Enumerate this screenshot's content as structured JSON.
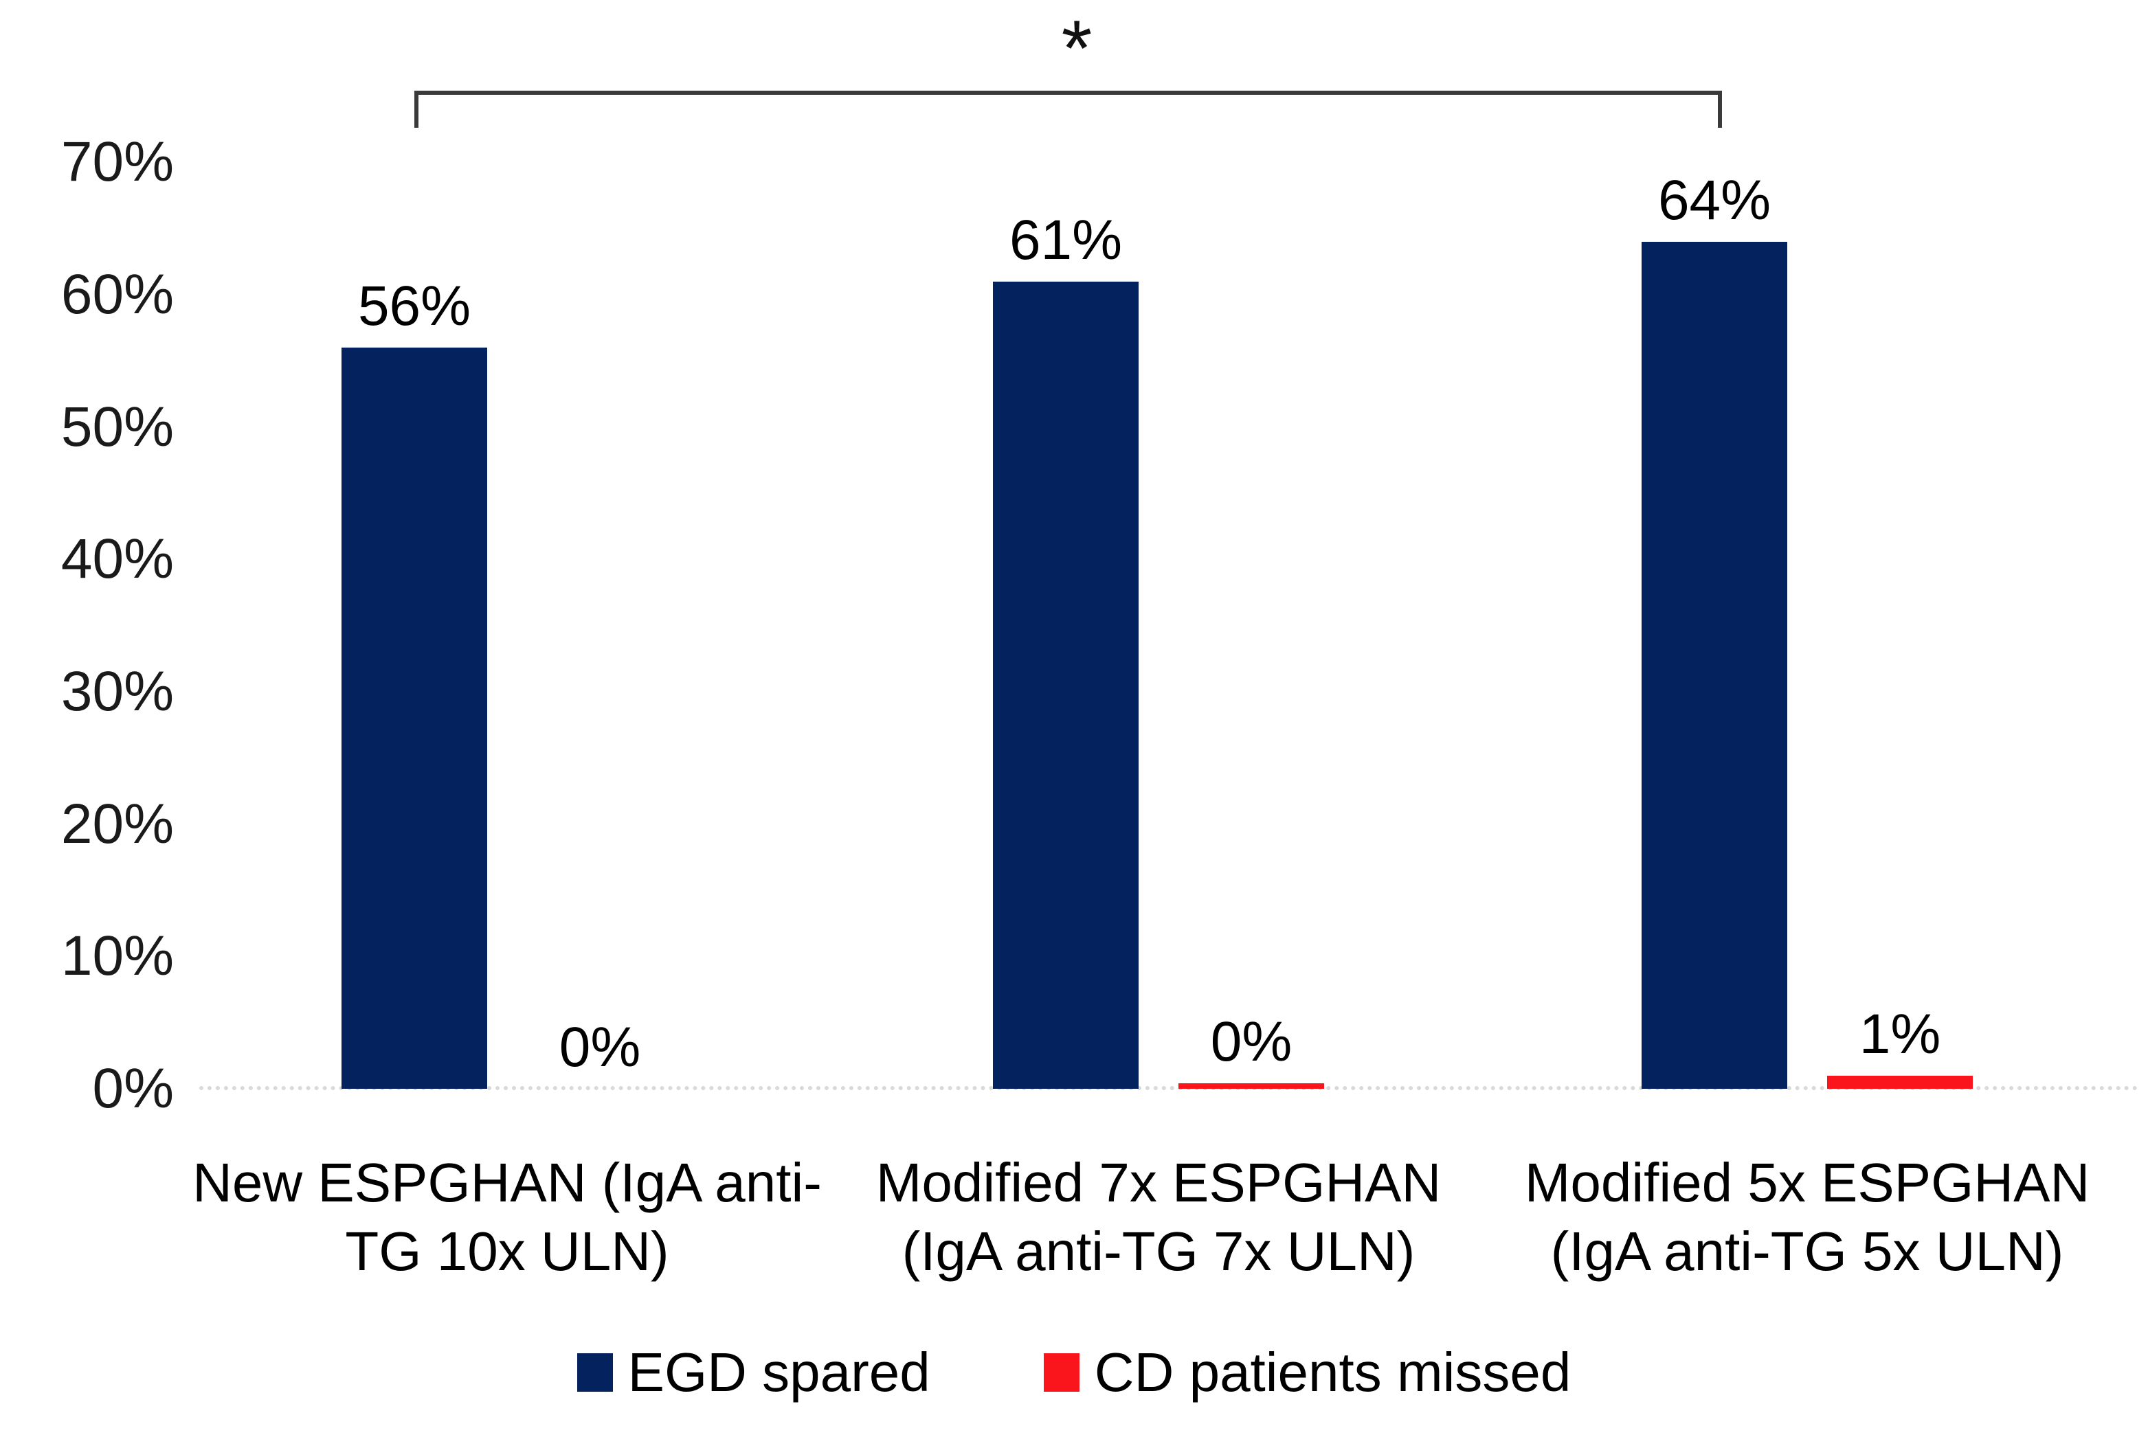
{
  "chart_data": {
    "type": "bar",
    "categories": [
      "New ESPGHAN (IgA anti-TG 10x ULN)",
      "Modified 7x ESPGHAN (IgA anti-TG 7x ULN)",
      "Modified 5x ESPGHAN (IgA anti-TG 5x ULN)"
    ],
    "series": [
      {
        "name": "EGD spared",
        "color": "#04225e",
        "values": [
          56,
          61,
          64
        ],
        "labels": [
          "56%",
          "61%",
          "64%"
        ]
      },
      {
        "name": "CD patients missed",
        "color": "#fa141c",
        "values": [
          0,
          0,
          1
        ],
        "labels": [
          "0%",
          "0%",
          "1%"
        ]
      }
    ],
    "y_axis": {
      "min": 0,
      "max": 70,
      "grid": false,
      "ticks": [
        {
          "label": "70%",
          "value": 70
        },
        {
          "label": "60%",
          "value": 60
        },
        {
          "label": "50%",
          "value": 50
        },
        {
          "label": "40%",
          "value": 40
        },
        {
          "label": "30%",
          "value": 30
        },
        {
          "label": "20%",
          "value": 20
        },
        {
          "label": "10%",
          "value": 10
        },
        {
          "label": "0%",
          "value": 0
        }
      ]
    },
    "annotation": {
      "symbol": "*",
      "from_category": 0,
      "to_category": 2
    },
    "legend": {
      "position": "bottom",
      "entries": [
        "EGD spared",
        "CD patients missed"
      ]
    },
    "title": "",
    "xlabel": "",
    "ylabel": ""
  },
  "colors": {
    "bar_blue": "#04225e",
    "bar_red": "#fa141c",
    "axis_line": "#d9d9d9",
    "bracket": "#3a3a3a",
    "text": "#000000",
    "background": "#ffffff"
  }
}
